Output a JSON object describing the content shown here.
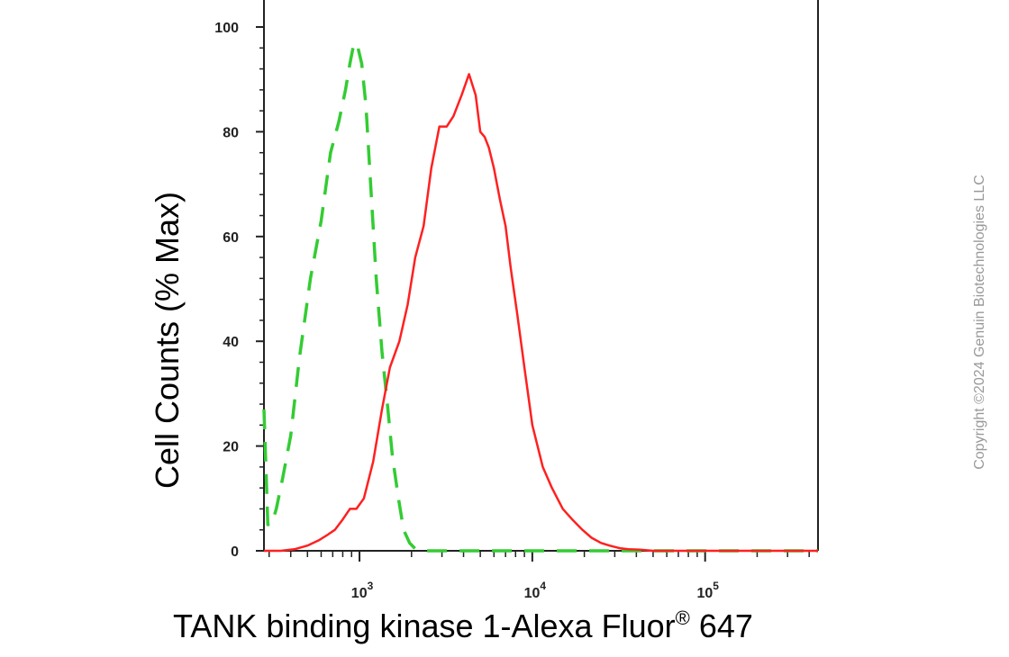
{
  "chart_data": {
    "type": "line",
    "xlabel": "TANK binding kinase 1-Alexa Fluor",
    "xlabel_sup": "®",
    "xlabel_suffix": " 647",
    "ylabel": "Cell Counts (% Max)",
    "x_scale": "log",
    "xlim": [
      280,
      450000
    ],
    "ylim": [
      0,
      100
    ],
    "y_ticks": [
      0,
      20,
      40,
      60,
      80,
      100
    ],
    "y_tick_labels": [
      "0",
      "20",
      "40",
      "60",
      "80",
      "100"
    ],
    "x_major_ticks": [
      1000,
      10000,
      100000
    ],
    "x_tick_labels": [
      {
        "base": "10",
        "exp": "3"
      },
      {
        "base": "10",
        "exp": "4"
      },
      {
        "base": "10",
        "exp": "5"
      }
    ],
    "grid": false,
    "series": [
      {
        "color": "#33cc33",
        "style": "dashed",
        "x": [
          280,
          295,
          310,
          330,
          360,
          400,
          450,
          520,
          600,
          680,
          760,
          830,
          880,
          930,
          980,
          1030,
          1090,
          1160,
          1250,
          1350,
          1450,
          1550,
          1680,
          1800,
          1950,
          2100,
          2300,
          3000,
          5000,
          10000,
          50000,
          450000
        ],
        "y": [
          27,
          5,
          5,
          8,
          14,
          22,
          37,
          52,
          63,
          76,
          82,
          88,
          93,
          97,
          96,
          93,
          85,
          70,
          52,
          38,
          28,
          18,
          10,
          4,
          1.5,
          0.4,
          0,
          0,
          0,
          0,
          0,
          0
        ]
      },
      {
        "color": "#ff2020",
        "style": "solid",
        "x": [
          280,
          350,
          420,
          500,
          580,
          650,
          720,
          800,
          880,
          960,
          1060,
          1200,
          1350,
          1500,
          1700,
          1900,
          2100,
          2350,
          2600,
          2900,
          3200,
          3500,
          3900,
          4300,
          4700,
          5000,
          5300,
          5600,
          6000,
          6500,
          7000,
          7500,
          8200,
          9000,
          10000,
          11500,
          13000,
          15000,
          17000,
          19500,
          22000,
          25000,
          28000,
          32000,
          36000,
          42000,
          50000,
          70000,
          100000,
          200000,
          450000
        ],
        "y": [
          0,
          0,
          0.3,
          1,
          2,
          3,
          4,
          6,
          8,
          8,
          10,
          17,
          27,
          35,
          40,
          47,
          56,
          62,
          73,
          81,
          81,
          83,
          87,
          91,
          87,
          80,
          79,
          77,
          73,
          67,
          62,
          54,
          45,
          35,
          24,
          16,
          12,
          8,
          6,
          4,
          2.5,
          1.5,
          1,
          0.5,
          0.3,
          0.2,
          0,
          0,
          0,
          0,
          0
        ]
      }
    ]
  },
  "watermark": "Copyright ©2024 Genuin Biotechnologies LLC",
  "colors": {
    "axis": "#222222",
    "isotype": "#33cc33",
    "sample": "#ff2020"
  }
}
